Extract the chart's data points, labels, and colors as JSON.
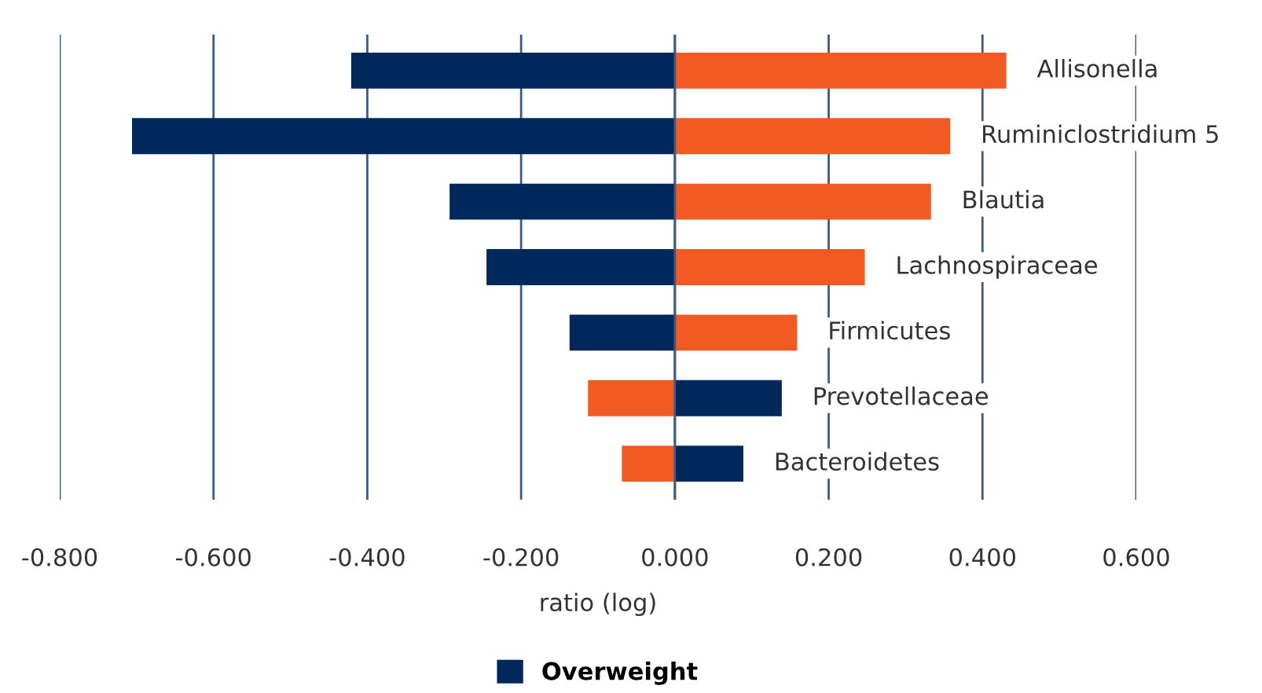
{
  "chart_data": {
    "type": "bar",
    "orientation": "horizontal",
    "xlabel": "ratio (log)",
    "categories": [
      "Allisonella",
      "Ruminiclostridium 5",
      "Blautia",
      "Lachnospiraceae",
      "Firmicutes",
      "Prevotellaceae",
      "Bacteroidetes"
    ],
    "series": [
      {
        "name": "Overweight",
        "color": "#00285a",
        "values": [
          -0.421,
          -0.706,
          -0.293,
          -0.245,
          -0.137,
          0.139,
          0.089
        ]
      },
      {
        "color": "#f15a22",
        "values": [
          0.431,
          0.358,
          0.333,
          0.247,
          0.159,
          -0.113,
          -0.069
        ]
      }
    ],
    "xlim": [
      -0.8,
      0.6
    ],
    "xticks": [
      {
        "value": -0.8,
        "label": "-0.800"
      },
      {
        "value": -0.6,
        "label": "-0.600"
      },
      {
        "value": -0.4,
        "label": "-0.400"
      },
      {
        "value": -0.2,
        "label": "-0.200"
      },
      {
        "value": 0,
        "label": "0.000"
      },
      {
        "value": 0.2,
        "label": "0.200"
      },
      {
        "value": 0.4,
        "label": "0.400"
      },
      {
        "value": 0.6,
        "label": "0.600"
      }
    ],
    "stacked": true,
    "grid": "x",
    "tick_labels": "x",
    "legend": "bottom"
  }
}
